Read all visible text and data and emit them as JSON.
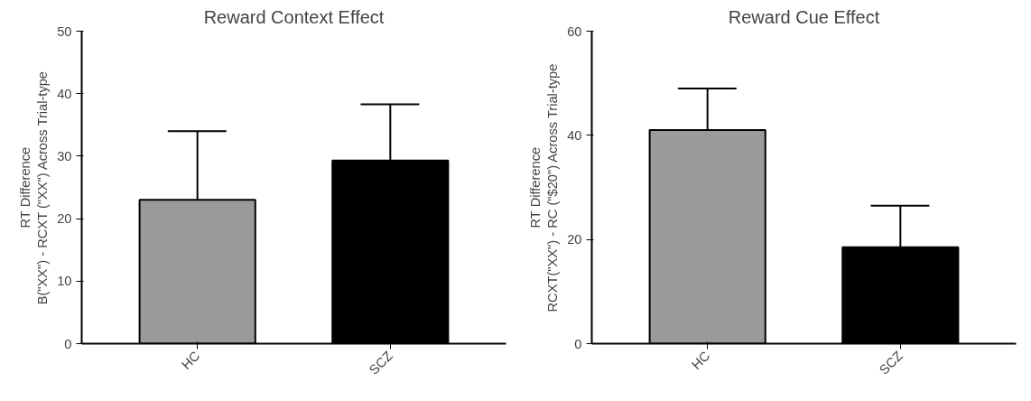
{
  "chart_data": [
    {
      "type": "bar",
      "title": "Reward Context Effect",
      "ylabel": "RT Difference\nB(\"XX\") - RCXT (\"XX\") Across Trial-type",
      "categories": [
        "HC",
        "SCZ"
      ],
      "values": [
        23,
        29.3
      ],
      "colors": [
        "#9a9a9a",
        "#000000"
      ],
      "errors": [
        [
          23,
          34
        ],
        [
          29.3,
          38.3
        ]
      ],
      "ylim": [
        0,
        50
      ],
      "yticks": [
        0,
        10,
        20,
        30,
        40,
        50
      ],
      "grid": false
    },
    {
      "type": "bar",
      "title": "Reward Cue Effect",
      "ylabel": "RT Difference\nRCXT(\"XX\") - RC (\"$20\") Across Trial-type",
      "categories": [
        "HC",
        "SCZ"
      ],
      "values": [
        41,
        18.5
      ],
      "colors": [
        "#9a9a9a",
        "#000000"
      ],
      "errors": [
        [
          41,
          49
        ],
        [
          18.5,
          26.5
        ]
      ],
      "ylim": [
        0,
        60
      ],
      "yticks": [
        0,
        20,
        40,
        60
      ],
      "grid": false
    }
  ]
}
